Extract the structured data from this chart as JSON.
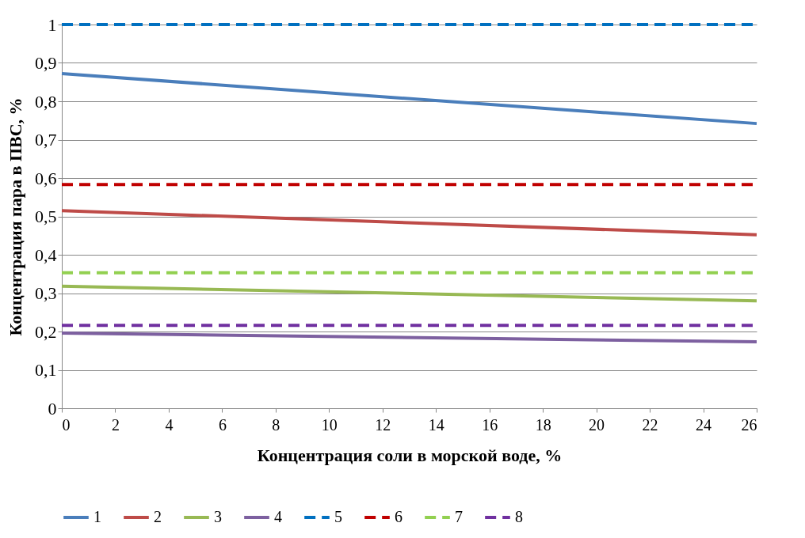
{
  "chart_data": {
    "type": "line",
    "xlabel": "Концентрация соли в морской воде, %",
    "ylabel": "Концентрация пара в ПВС, %",
    "x": [
      0,
      26
    ],
    "xlim": [
      0,
      26
    ],
    "xticks": [
      0,
      2,
      4,
      6,
      8,
      10,
      12,
      14,
      16,
      18,
      20,
      22,
      24,
      26
    ],
    "ylim": [
      0,
      1
    ],
    "yticks": [
      0,
      {
        "value": 0.1,
        "label": "0,1"
      },
      {
        "value": 0.2,
        "label": "0,2"
      },
      {
        "value": 0.3,
        "label": "0,3"
      },
      {
        "value": 0.4,
        "label": "0,4"
      },
      {
        "value": 0.5,
        "label": "0,5"
      },
      {
        "value": 0.6,
        "label": "0,6"
      },
      {
        "value": 0.7,
        "label": "0,7"
      },
      {
        "value": 0.8,
        "label": "0,8"
      },
      {
        "value": 0.9,
        "label": "0,9"
      },
      1
    ],
    "grid": "y",
    "legend": "bottom",
    "marker": "none",
    "series": [
      {
        "name": "1",
        "color": "#4a7ebb",
        "values": [
          0.872,
          0.742
        ],
        "line_style": "solid"
      },
      {
        "name": "2",
        "color": "#be4b48",
        "values": [
          0.515,
          0.452
        ],
        "line_style": "solid"
      },
      {
        "name": "3",
        "color": "#98b954",
        "values": [
          0.318,
          0.28
        ],
        "line_style": "solid"
      },
      {
        "name": "4",
        "color": "#7d60a0",
        "values": [
          0.196,
          0.173
        ],
        "line_style": "solid"
      },
      {
        "name": "5",
        "color": "#0070c0",
        "values": [
          1,
          1
        ],
        "line_style": "dashed"
      },
      {
        "name": "6",
        "color": "#c00000",
        "values": [
          0.583,
          0.583
        ],
        "line_style": "dashed"
      },
      {
        "name": "7",
        "color": "#92d050",
        "values": [
          0.353,
          0.353
        ],
        "line_style": "dashed"
      },
      {
        "name": "8",
        "color": "#7030a0",
        "values": [
          0.216,
          0.216
        ],
        "line_style": "dashed"
      }
    ]
  }
}
